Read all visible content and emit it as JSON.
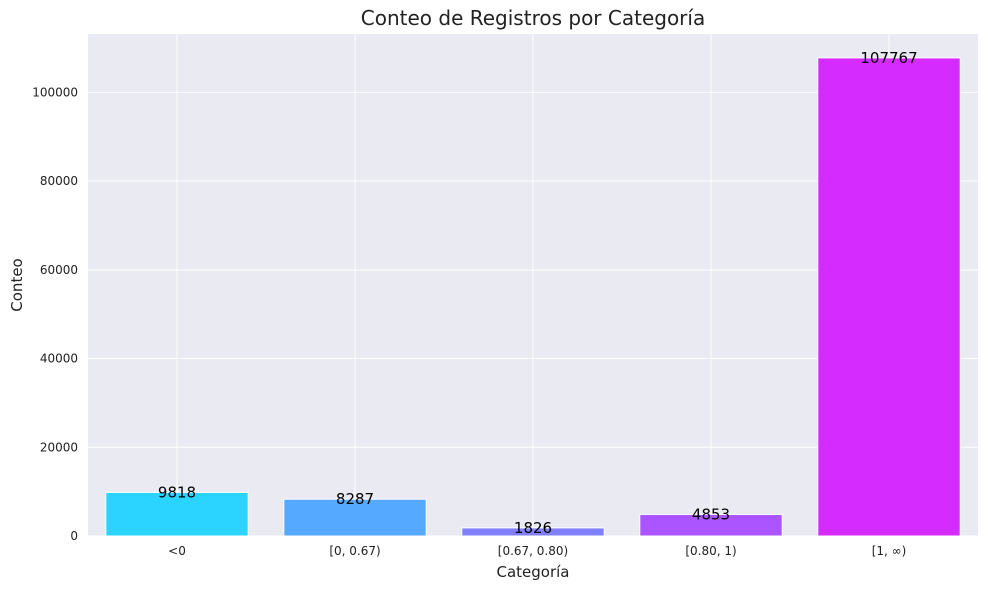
{
  "chart_data": {
    "type": "bar",
    "title": "Conteo de Registros por Categoría",
    "xlabel": "Categoría",
    "ylabel": "Conteo",
    "categories": [
      "<0",
      "[0, 0.67)",
      "[0.67, 0.80)",
      "[0.80, 1)",
      "[1, ∞)"
    ],
    "values": [
      9818,
      8287,
      1826,
      4853,
      107767
    ],
    "data_labels": [
      "9818",
      "8287",
      "1826",
      "4853",
      "107767"
    ],
    "colors": [
      "#2bd4ff",
      "#55aaff",
      "#8080ff",
      "#aa55ff",
      "#d52bff"
    ],
    "yticks": [
      0,
      20000,
      40000,
      60000,
      80000,
      100000
    ],
    "ytick_labels": [
      "0",
      "20000",
      "40000",
      "60000",
      "80000",
      "100000"
    ],
    "ylim": [
      0,
      113155
    ],
    "grid": true,
    "background": "#eaeaf2",
    "legend": "none"
  }
}
